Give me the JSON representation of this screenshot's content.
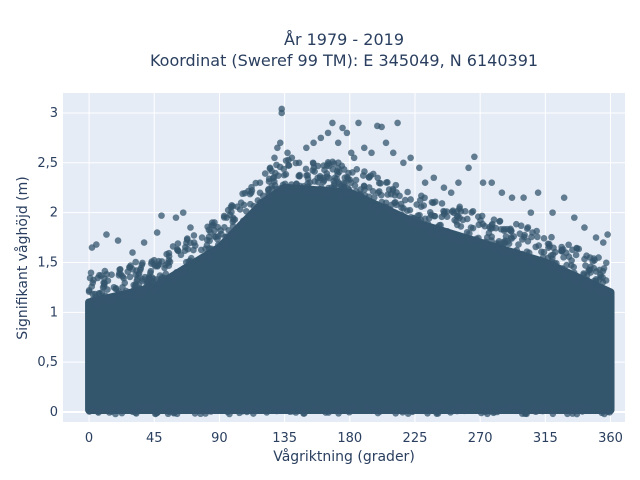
{
  "chart_data": {
    "type": "scatter",
    "title_line1": "År 1979 - 2019",
    "title_line2": "Koordinat (Sweref 99 TM): E 345049, N 6140391",
    "xlabel": "Vågriktning (grader)",
    "ylabel": "Signifikant våghöjd (m)",
    "xlim": [
      -18,
      370
    ],
    "ylim": [
      -0.1,
      3.2
    ],
    "xticks": [
      0,
      45,
      90,
      135,
      180,
      225,
      270,
      315,
      360
    ],
    "xtick_labels": [
      "0",
      "45",
      "90",
      "135",
      "180",
      "225",
      "270",
      "315",
      "360"
    ],
    "yticks": [
      0,
      0.5,
      1,
      1.5,
      2,
      2.5,
      3
    ],
    "ytick_labels": [
      "0",
      "0,5",
      "1",
      "1,5",
      "2",
      "2,5",
      "3"
    ],
    "grid": true,
    "plot_background": "#e5ecf6",
    "marker_color": "#34566d",
    "dense_band": {
      "x_range": [
        0,
        360
      ],
      "y_min": 0.02,
      "upper_envelope": [
        [
          0,
          1.1
        ],
        [
          45,
          1.25
        ],
        [
          90,
          1.65
        ],
        [
          120,
          2.1
        ],
        [
          135,
          2.25
        ],
        [
          180,
          2.2
        ],
        [
          225,
          1.9
        ],
        [
          270,
          1.7
        ],
        [
          315,
          1.5
        ],
        [
          360,
          1.2
        ]
      ]
    },
    "outlier_points": [
      [
        2,
        1.65
      ],
      [
        5,
        1.68
      ],
      [
        12,
        1.78
      ],
      [
        20,
        1.72
      ],
      [
        30,
        1.6
      ],
      [
        38,
        1.7
      ],
      [
        47,
        1.8
      ],
      [
        50,
        1.97
      ],
      [
        60,
        1.95
      ],
      [
        65,
        2.0
      ],
      [
        70,
        1.85
      ],
      [
        78,
        1.75
      ],
      [
        85,
        1.9
      ],
      [
        95,
        1.95
      ],
      [
        105,
        2.1
      ],
      [
        112,
        2.2
      ],
      [
        118,
        2.3
      ],
      [
        125,
        2.45
      ],
      [
        128,
        2.55
      ],
      [
        130,
        2.65
      ],
      [
        132,
        2.7
      ],
      [
        133,
        3.04
      ],
      [
        133,
        3.0
      ],
      [
        137,
        2.6
      ],
      [
        140,
        2.55
      ],
      [
        145,
        2.5
      ],
      [
        150,
        2.65
      ],
      [
        155,
        2.7
      ],
      [
        160,
        2.75
      ],
      [
        165,
        2.8
      ],
      [
        168,
        2.9
      ],
      [
        172,
        2.7
      ],
      [
        175,
        2.85
      ],
      [
        178,
        2.8
      ],
      [
        181,
        2.6
      ],
      [
        183,
        2.55
      ],
      [
        186,
        2.9
      ],
      [
        190,
        2.65
      ],
      [
        195,
        2.6
      ],
      [
        199,
        2.87
      ],
      [
        202,
        2.86
      ],
      [
        205,
        2.7
      ],
      [
        210,
        2.6
      ],
      [
        213,
        2.9
      ],
      [
        217,
        2.5
      ],
      [
        222,
        2.55
      ],
      [
        228,
        2.45
      ],
      [
        232,
        2.3
      ],
      [
        238,
        2.35
      ],
      [
        245,
        2.25
      ],
      [
        250,
        2.2
      ],
      [
        255,
        2.3
      ],
      [
        262,
        2.45
      ],
      [
        266,
        2.56
      ],
      [
        272,
        2.3
      ],
      [
        278,
        2.3
      ],
      [
        285,
        2.2
      ],
      [
        292,
        2.15
      ],
      [
        300,
        2.15
      ],
      [
        305,
        2.0
      ],
      [
        310,
        2.2
      ],
      [
        320,
        2.0
      ],
      [
        328,
        2.15
      ],
      [
        335,
        1.95
      ],
      [
        342,
        1.85
      ],
      [
        350,
        1.75
      ],
      [
        355,
        1.7
      ],
      [
        358,
        1.78
      ]
    ]
  }
}
